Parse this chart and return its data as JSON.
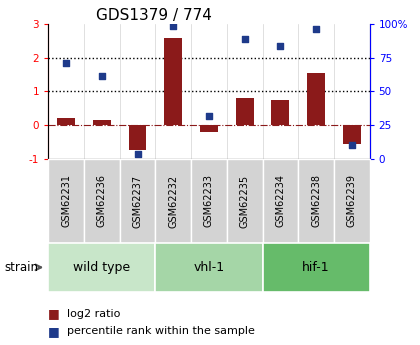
{
  "title": "GDS1379 / 774",
  "samples": [
    "GSM62231",
    "GSM62236",
    "GSM62237",
    "GSM62232",
    "GSM62233",
    "GSM62235",
    "GSM62234",
    "GSM62238",
    "GSM62239"
  ],
  "log2_ratio": [
    0.2,
    0.15,
    -0.75,
    2.6,
    -0.2,
    0.8,
    0.75,
    1.55,
    -0.55
  ],
  "percentile_rank_scaled": [
    1.85,
    1.45,
    -0.85,
    2.95,
    0.28,
    2.55,
    2.35,
    2.87,
    -0.6
  ],
  "groups": [
    {
      "label": "wild type",
      "indices": [
        0,
        1,
        2
      ],
      "color": "#c8e6c9"
    },
    {
      "label": "vhl-1",
      "indices": [
        3,
        4,
        5
      ],
      "color": "#a5d6a7"
    },
    {
      "label": "hif-1",
      "indices": [
        6,
        7,
        8
      ],
      "color": "#66bb6a"
    }
  ],
  "ylim": [
    -1,
    3
  ],
  "yticks_left": [
    -1,
    0,
    1,
    2,
    3
  ],
  "yticks_right_labels": [
    "0",
    "25",
    "50",
    "75",
    "100%"
  ],
  "yticks_right_positions": [
    -1,
    0,
    1,
    2,
    3
  ],
  "bar_color": "#8B1A1A",
  "dot_color": "#1E3A8A",
  "title_fontsize": 11,
  "sample_fontsize": 7,
  "group_fontsize": 9,
  "legend_fontsize": 8,
  "legend_bar_label": "log2 ratio",
  "legend_dot_label": "percentile rank within the sample",
  "strain_label": "strain"
}
